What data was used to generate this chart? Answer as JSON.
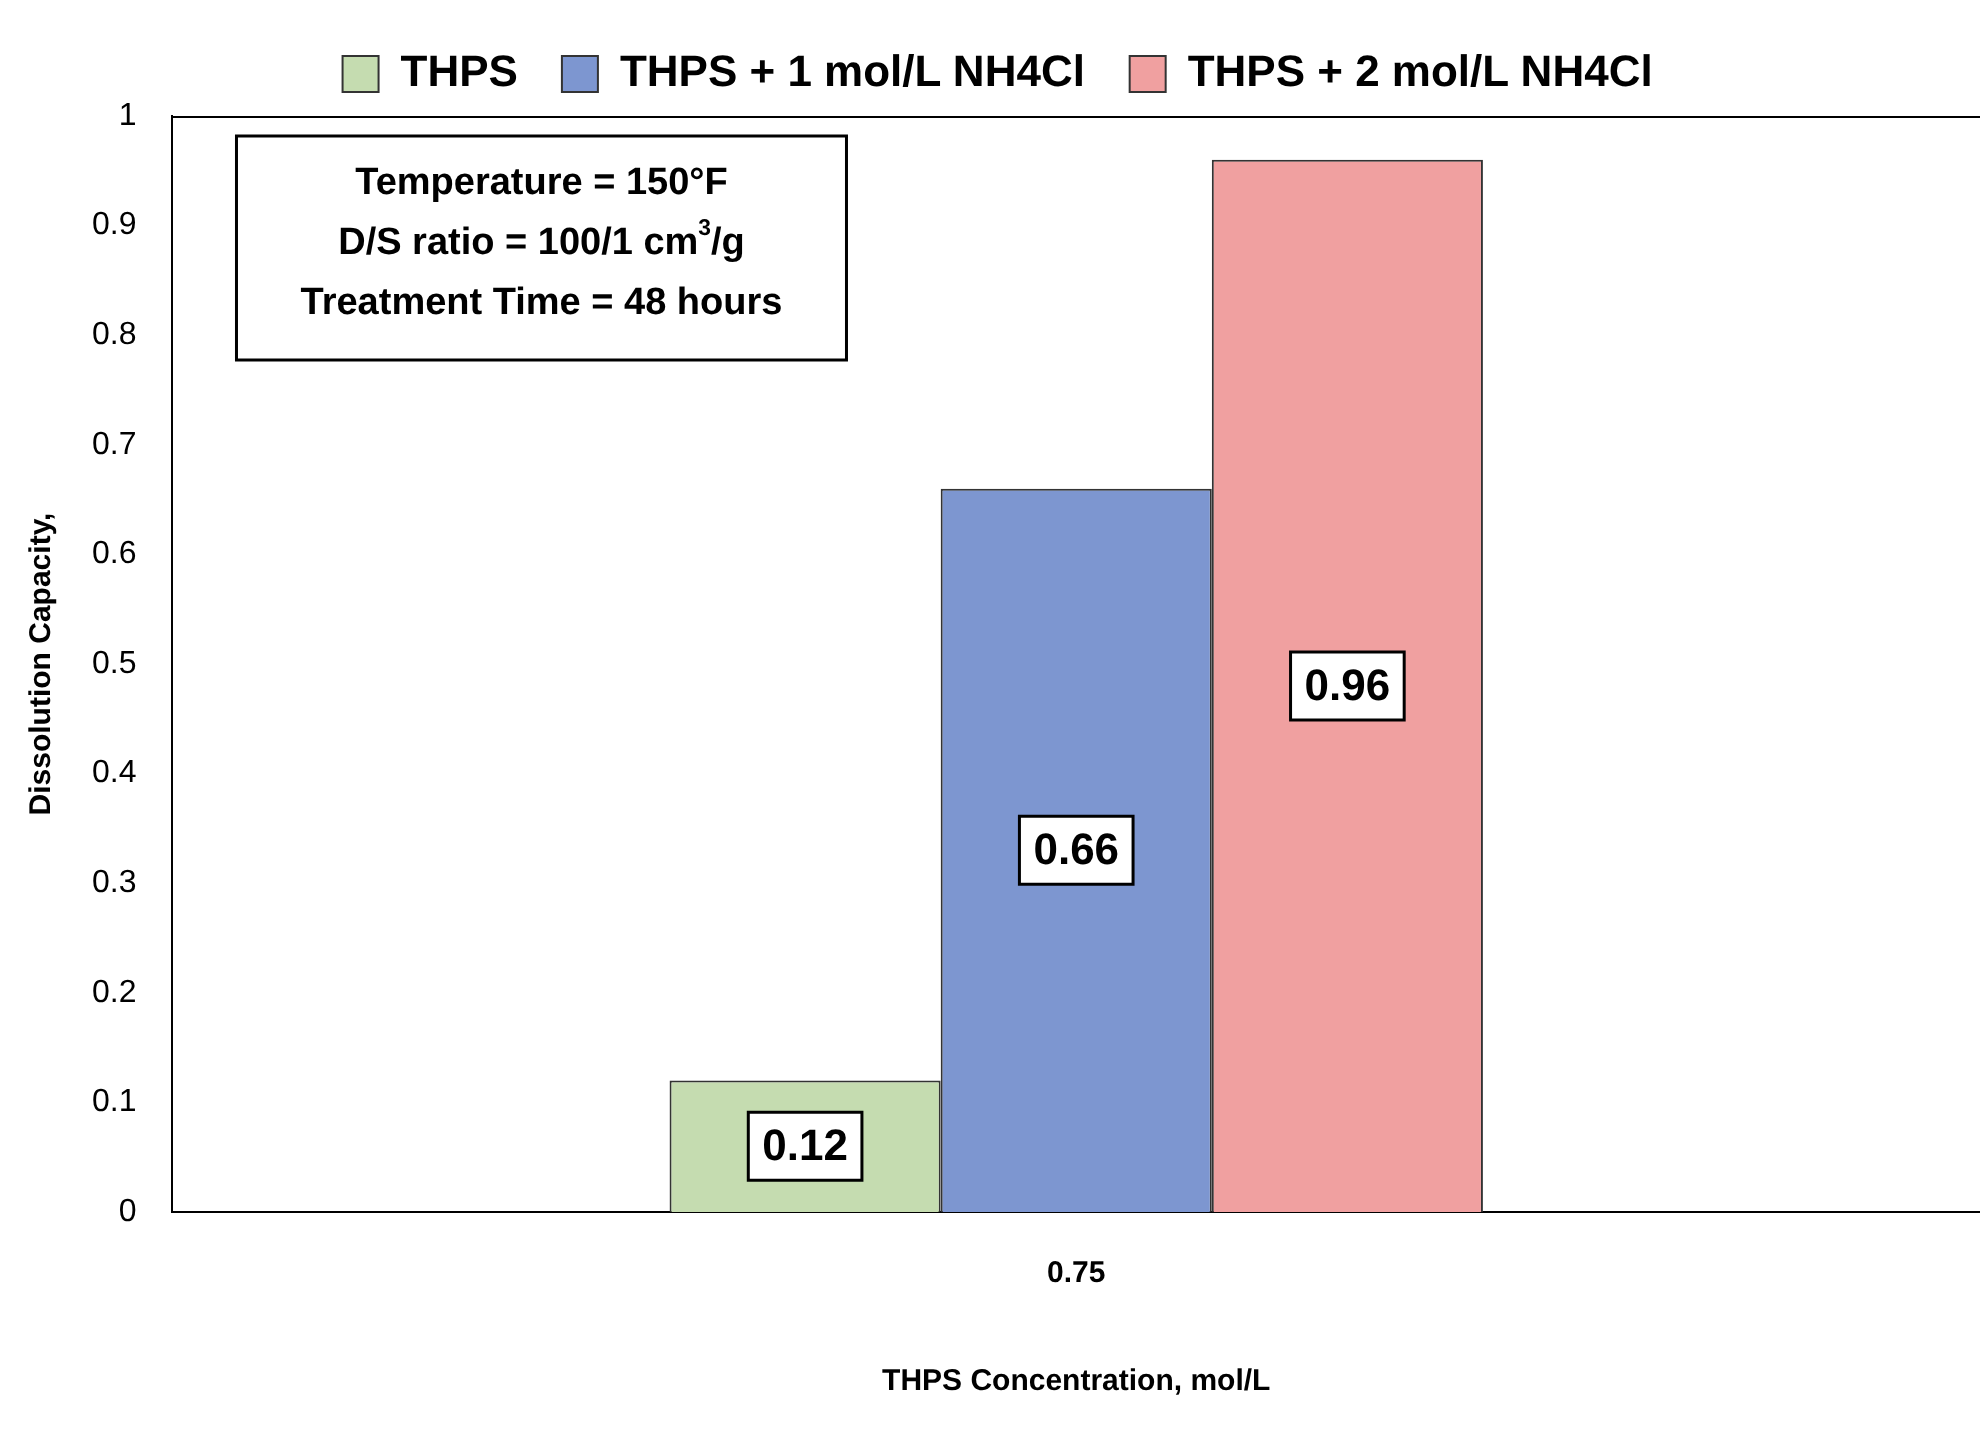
{
  "chart_data": {
    "type": "bar",
    "categories": [
      "0.75"
    ],
    "series": [
      {
        "name": "THPS",
        "color": "#c5dcb0",
        "values": [
          0.12
        ]
      },
      {
        "name": "THPS + 1 mol/L NH4Cl",
        "color": "#7d96d0",
        "values": [
          0.66
        ]
      },
      {
        "name": "THPS + 2 mol/L NH4Cl",
        "color": "#f0a0a0",
        "values": [
          0.96
        ]
      }
    ],
    "xlabel": "THPS Concentration, mol/L",
    "ylabel": "Dissolution Capacity,",
    "ylim": [
      0,
      1
    ],
    "yticks": [
      0,
      0.1,
      0.2,
      0.3,
      0.4,
      0.5,
      0.6,
      0.7,
      0.8,
      0.9,
      1
    ],
    "annotations": [
      "Temperature = 150°F",
      "D/S ratio = 100/1 cm$^{3}$/g",
      "Treatment Time = 48 hours"
    ],
    "data_labels": true,
    "legend": "top",
    "grid": false
  }
}
